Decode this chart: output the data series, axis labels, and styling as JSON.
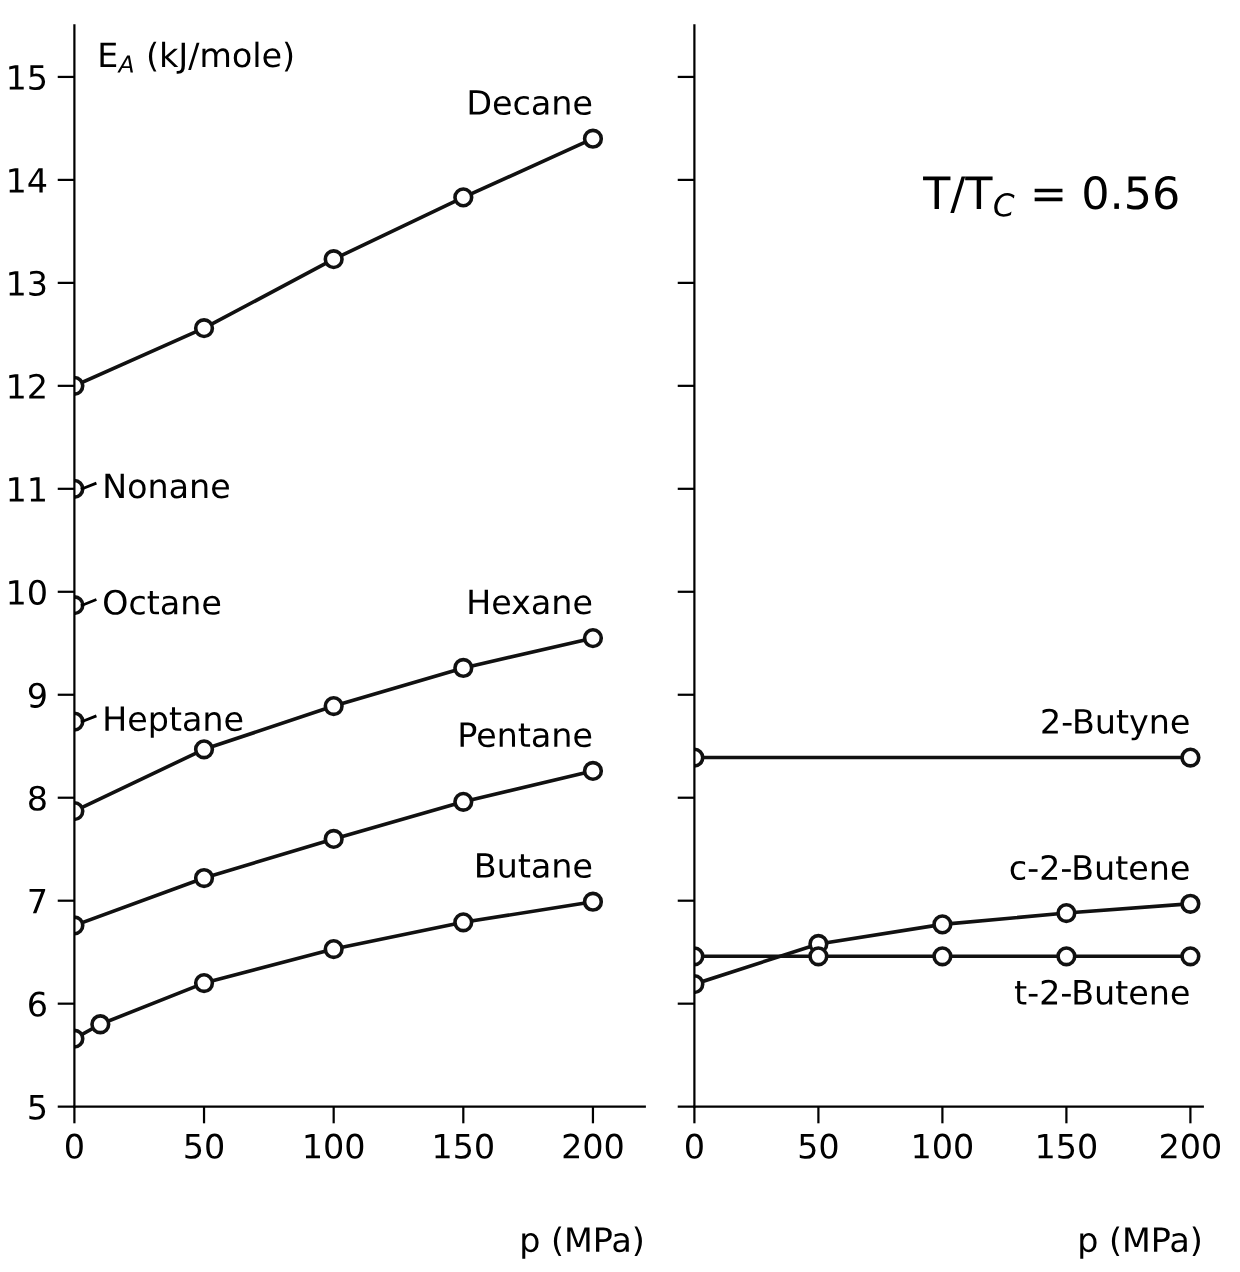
{
  "chart_data": [
    {
      "type": "line",
      "ylabel": "E$_{A}$ (kJ/mole)",
      "xlabel": "p (MPa)",
      "xlim": [
        0,
        220
      ],
      "ylim": [
        5,
        15.5
      ],
      "xticks": [
        0,
        50,
        100,
        150,
        200
      ],
      "yticks": [
        5,
        6,
        7,
        8,
        9,
        10,
        11,
        12,
        13,
        14,
        15
      ],
      "marker": "circle",
      "grid": false,
      "legend": false,
      "series": [
        {
          "name": "Decane",
          "color": "#111111",
          "x": [
            0,
            50,
            100,
            150,
            200
          ],
          "values": [
            12.0,
            12.56,
            13.23,
            13.83,
            14.4
          ]
        },
        {
          "name": "Nonane",
          "color": "#111111",
          "x": [
            0
          ],
          "values": [
            11.0
          ]
        },
        {
          "name": "Octane",
          "color": "#111111",
          "x": [
            0
          ],
          "values": [
            9.87
          ]
        },
        {
          "name": "Heptane",
          "color": "#111111",
          "x": [
            0
          ],
          "values": [
            8.74
          ]
        },
        {
          "name": "Hexane",
          "color": "#111111",
          "x": [
            0,
            50,
            100,
            150,
            200
          ],
          "values": [
            7.87,
            8.47,
            8.89,
            9.26,
            9.55
          ]
        },
        {
          "name": "Pentane",
          "color": "#111111",
          "x": [
            0,
            50,
            100,
            150,
            200
          ],
          "values": [
            6.76,
            7.22,
            7.6,
            7.96,
            8.26
          ]
        },
        {
          "name": "Butane",
          "color": "#111111",
          "x": [
            0,
            10,
            50,
            100,
            150,
            200
          ],
          "values": [
            5.66,
            5.8,
            6.2,
            6.53,
            6.79,
            6.99
          ]
        }
      ]
    },
    {
      "type": "line",
      "xlabel": "p (MPa)",
      "xlim": [
        0,
        205
      ],
      "ylim": [
        5,
        15.5
      ],
      "xticks": [
        0,
        50,
        100,
        150,
        200
      ],
      "yticks": [
        5,
        6,
        7,
        8,
        9,
        10,
        11,
        12,
        13,
        14,
        15
      ],
      "tick_labels": "x",
      "marker": "circle",
      "grid": false,
      "legend": false,
      "annotations": [
        "T/T$_{C}$ = 0.56"
      ],
      "series": [
        {
          "name": "2-Butyne",
          "color": "#111111",
          "x": [
            0,
            200
          ],
          "values": [
            8.39,
            8.39
          ]
        },
        {
          "name": "c-2-Butene",
          "color": "#111111",
          "x": [
            0,
            50,
            100,
            150,
            200
          ],
          "values": [
            6.19,
            6.58,
            6.77,
            6.88,
            6.97
          ]
        },
        {
          "name": "t-2-Butene",
          "color": "#111111",
          "x": [
            0,
            50,
            100,
            150,
            200
          ],
          "values": [
            6.46,
            6.46,
            6.46,
            6.46,
            6.46
          ]
        }
      ]
    }
  ]
}
